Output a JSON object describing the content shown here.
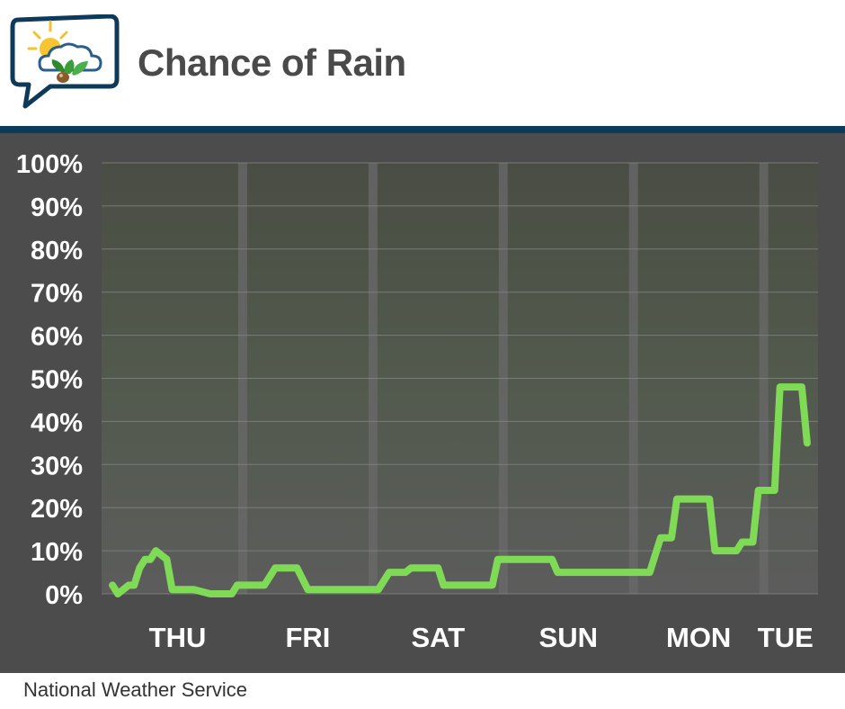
{
  "header": {
    "title": "Chance of Rain",
    "logo_icon": "weather-speech-bubble-logo-icon"
  },
  "footer": {
    "source": "National Weather Service"
  },
  "colors": {
    "header_rule": "#0d3a5a",
    "panel_bg": "#4c4c4c",
    "line": "#7fdb55",
    "text": "#ffffff"
  },
  "chart_data": {
    "type": "line",
    "title": "Chance of Rain",
    "xlabel": "",
    "ylabel": "",
    "ylim": [
      0,
      100
    ],
    "y_ticks": [
      "0%",
      "10%",
      "20%",
      "30%",
      "40%",
      "50%",
      "60%",
      "70%",
      "80%",
      "90%",
      "100%"
    ],
    "y_tick_values": [
      0,
      10,
      20,
      30,
      40,
      50,
      60,
      70,
      80,
      90,
      100
    ],
    "categories": [
      "THU",
      "FRI",
      "SAT",
      "SUN",
      "MON",
      "TUE"
    ],
    "day_boundaries_hours": [
      24,
      48,
      72,
      96,
      120
    ],
    "x_unit": "hours from start of Thursday",
    "xlim": [
      -2,
      130
    ],
    "grid": true,
    "series": [
      {
        "x": [
          0,
          1,
          3,
          4,
          5,
          6,
          7,
          8,
          9,
          10,
          11,
          15,
          18,
          20,
          22,
          23,
          26,
          28,
          30,
          34,
          36,
          39,
          40,
          41,
          42,
          43,
          45,
          47,
          49,
          51,
          52,
          53,
          54,
          55,
          58,
          60,
          61,
          62,
          67,
          68,
          69,
          70,
          71,
          76,
          81,
          82,
          88,
          89,
          90,
          91,
          96,
          98,
          99,
          101,
          103,
          104,
          105,
          110,
          111,
          112,
          113,
          115,
          116,
          117,
          118,
          119,
          120,
          121,
          122,
          123,
          124,
          125,
          126,
          127,
          128
        ],
        "values": [
          2,
          0,
          2,
          2,
          6,
          8,
          8,
          10,
          9,
          8,
          1,
          1,
          0,
          0,
          0,
          2,
          2,
          2,
          6,
          6,
          1,
          1,
          1,
          1,
          1,
          1,
          1,
          1,
          1,
          5,
          5,
          5,
          5,
          6,
          6,
          6,
          2,
          2,
          2,
          2,
          2,
          2,
          8,
          8,
          8,
          5,
          5,
          5,
          5,
          5,
          5,
          5,
          5,
          13,
          13,
          22,
          22,
          22,
          10,
          10,
          10,
          10,
          12,
          12,
          12,
          24,
          24,
          24,
          24,
          48,
          48,
          48,
          48,
          48,
          35
        ]
      }
    ]
  }
}
